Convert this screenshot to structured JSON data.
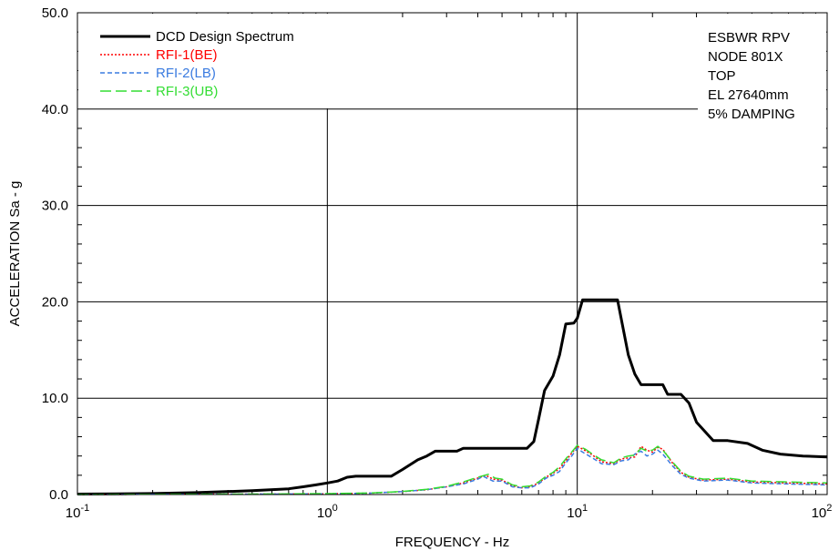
{
  "chart_data": {
    "type": "line",
    "title": "",
    "xlabel": "FREQUENCY - Hz",
    "ylabel": "ACCELERATION Sa - g",
    "xscale": "log",
    "xlim": [
      0.1,
      100
    ],
    "ylim": [
      0,
      50
    ],
    "grid": true,
    "legend_position": "top-left",
    "x_ticks": [
      {
        "base": "10",
        "exp": "-1",
        "value": 0.1
      },
      {
        "base": "10",
        "exp": "0",
        "value": 1
      },
      {
        "base": "10",
        "exp": "1",
        "value": 10
      },
      {
        "base": "10",
        "exp": "2",
        "value": 100
      }
    ],
    "y_ticks": [
      {
        "label": "0.0",
        "value": 0
      },
      {
        "label": "10.0",
        "value": 10
      },
      {
        "label": "20.0",
        "value": 20
      },
      {
        "label": "30.0",
        "value": 30
      },
      {
        "label": "40.0",
        "value": 40
      },
      {
        "label": "50.0",
        "value": 50
      }
    ],
    "annotations": [
      "ESBWR RPV",
      "NODE 801X",
      "TOP",
      "EL 27640mm",
      "5% DAMPING"
    ],
    "series": [
      {
        "name": "DCD Design Spectrum",
        "color": "#000000",
        "style": "solid",
        "points": [
          [
            0.1,
            0.05
          ],
          [
            0.2,
            0.1
          ],
          [
            0.3,
            0.2
          ],
          [
            0.5,
            0.4
          ],
          [
            0.7,
            0.6
          ],
          [
            0.8,
            0.8
          ],
          [
            0.9,
            1.0
          ],
          [
            1.0,
            1.2
          ],
          [
            1.1,
            1.4
          ],
          [
            1.2,
            1.8
          ],
          [
            1.3,
            1.9
          ],
          [
            1.8,
            1.9
          ],
          [
            2.0,
            2.6
          ],
          [
            2.3,
            3.6
          ],
          [
            2.5,
            4.0
          ],
          [
            2.7,
            4.5
          ],
          [
            3.3,
            4.5
          ],
          [
            3.5,
            4.8
          ],
          [
            6.3,
            4.8
          ],
          [
            6.7,
            5.5
          ],
          [
            7.0,
            7.8
          ],
          [
            7.4,
            10.8
          ],
          [
            8.0,
            12.3
          ],
          [
            8.5,
            14.5
          ],
          [
            9.0,
            17.7
          ],
          [
            9.7,
            17.8
          ],
          [
            10.0,
            18.3
          ],
          [
            10.5,
            20.2
          ],
          [
            14.5,
            20.2
          ],
          [
            16.0,
            14.5
          ],
          [
            17.0,
            12.5
          ],
          [
            18.0,
            11.4
          ],
          [
            22.0,
            11.4
          ],
          [
            23.0,
            10.4
          ],
          [
            26.0,
            10.4
          ],
          [
            28.0,
            9.5
          ],
          [
            30.0,
            7.5
          ],
          [
            35.0,
            5.6
          ],
          [
            40.0,
            5.6
          ],
          [
            48.0,
            5.3
          ],
          [
            55.0,
            4.6
          ],
          [
            65.0,
            4.2
          ],
          [
            80.0,
            4.0
          ],
          [
            100.0,
            3.9
          ]
        ]
      },
      {
        "name": "RFI-1(BE)",
        "color": "#ff0000",
        "style": "dotted",
        "points": [
          [
            0.1,
            0.01
          ],
          [
            0.5,
            0.04
          ],
          [
            1.0,
            0.08
          ],
          [
            1.5,
            0.15
          ],
          [
            2.0,
            0.3
          ],
          [
            2.5,
            0.5
          ],
          [
            3.0,
            0.8
          ],
          [
            3.5,
            1.2
          ],
          [
            4.0,
            1.7
          ],
          [
            4.3,
            2.0
          ],
          [
            4.6,
            1.6
          ],
          [
            5.0,
            1.5
          ],
          [
            5.5,
            0.9
          ],
          [
            6.0,
            0.7
          ],
          [
            6.5,
            0.8
          ],
          [
            7.0,
            1.2
          ],
          [
            7.5,
            1.8
          ],
          [
            8.0,
            2.2
          ],
          [
            8.5,
            2.7
          ],
          [
            9.0,
            3.5
          ],
          [
            9.5,
            4.3
          ],
          [
            10.0,
            5.0
          ],
          [
            10.7,
            4.6
          ],
          [
            11.5,
            4.1
          ],
          [
            12.5,
            3.4
          ],
          [
            14.0,
            3.2
          ],
          [
            15.0,
            3.7
          ],
          [
            16.0,
            3.8
          ],
          [
            17.0,
            3.9
          ],
          [
            18.0,
            5.0
          ],
          [
            19.0,
            4.6
          ],
          [
            20.0,
            4.4
          ],
          [
            21.0,
            4.9
          ],
          [
            22.0,
            4.7
          ],
          [
            24.0,
            3.3
          ],
          [
            26.0,
            2.3
          ],
          [
            28.0,
            1.8
          ],
          [
            32.0,
            1.5
          ],
          [
            40.0,
            1.6
          ],
          [
            50.0,
            1.3
          ],
          [
            70.0,
            1.2
          ],
          [
            100.0,
            1.1
          ]
        ]
      },
      {
        "name": "RFI-2(LB)",
        "color": "#3a7be0",
        "style": "dashed",
        "points": [
          [
            0.1,
            0.01
          ],
          [
            0.5,
            0.04
          ],
          [
            1.0,
            0.08
          ],
          [
            1.5,
            0.15
          ],
          [
            2.0,
            0.3
          ],
          [
            2.5,
            0.5
          ],
          [
            3.0,
            0.8
          ],
          [
            3.5,
            1.1
          ],
          [
            4.0,
            1.6
          ],
          [
            4.2,
            1.9
          ],
          [
            4.6,
            1.4
          ],
          [
            5.0,
            1.4
          ],
          [
            5.5,
            0.8
          ],
          [
            6.0,
            0.7
          ],
          [
            6.5,
            0.7
          ],
          [
            7.0,
            1.1
          ],
          [
            7.5,
            1.7
          ],
          [
            8.0,
            2.0
          ],
          [
            8.5,
            2.4
          ],
          [
            9.0,
            3.3
          ],
          [
            9.5,
            4.0
          ],
          [
            10.0,
            4.8
          ],
          [
            10.5,
            4.4
          ],
          [
            11.5,
            3.8
          ],
          [
            12.5,
            3.2
          ],
          [
            14.0,
            3.1
          ],
          [
            15.0,
            3.5
          ],
          [
            16.0,
            3.6
          ],
          [
            17.0,
            4.2
          ],
          [
            18.0,
            4.5
          ],
          [
            19.0,
            4.0
          ],
          [
            20.0,
            4.2
          ],
          [
            21.0,
            4.6
          ],
          [
            22.0,
            4.2
          ],
          [
            24.0,
            3.0
          ],
          [
            26.0,
            2.1
          ],
          [
            28.0,
            1.7
          ],
          [
            32.0,
            1.4
          ],
          [
            40.0,
            1.5
          ],
          [
            50.0,
            1.2
          ],
          [
            70.0,
            1.1
          ],
          [
            100.0,
            1.0
          ]
        ]
      },
      {
        "name": "RFI-3(UB)",
        "color": "#33dd33",
        "style": "longdash",
        "points": [
          [
            0.1,
            0.01
          ],
          [
            0.5,
            0.05
          ],
          [
            1.0,
            0.09
          ],
          [
            1.5,
            0.16
          ],
          [
            2.0,
            0.32
          ],
          [
            2.5,
            0.55
          ],
          [
            3.0,
            0.85
          ],
          [
            3.5,
            1.3
          ],
          [
            4.0,
            1.8
          ],
          [
            4.4,
            2.1
          ],
          [
            4.7,
            1.7
          ],
          [
            5.0,
            1.6
          ],
          [
            5.5,
            1.0
          ],
          [
            6.0,
            0.8
          ],
          [
            6.5,
            0.9
          ],
          [
            7.0,
            1.3
          ],
          [
            7.5,
            1.9
          ],
          [
            8.0,
            2.3
          ],
          [
            8.5,
            2.9
          ],
          [
            9.0,
            3.7
          ],
          [
            9.5,
            4.4
          ],
          [
            10.0,
            5.1
          ],
          [
            10.8,
            4.7
          ],
          [
            11.5,
            4.2
          ],
          [
            12.5,
            3.6
          ],
          [
            14.0,
            3.3
          ],
          [
            15.0,
            3.8
          ],
          [
            16.0,
            4.0
          ],
          [
            17.0,
            4.1
          ],
          [
            18.0,
            4.8
          ],
          [
            19.0,
            4.5
          ],
          [
            20.0,
            4.6
          ],
          [
            21.0,
            5.0
          ],
          [
            22.0,
            4.6
          ],
          [
            24.0,
            3.4
          ],
          [
            26.0,
            2.4
          ],
          [
            28.0,
            1.9
          ],
          [
            32.0,
            1.6
          ],
          [
            40.0,
            1.7
          ],
          [
            50.0,
            1.4
          ],
          [
            70.0,
            1.3
          ],
          [
            100.0,
            1.2
          ]
        ]
      }
    ]
  }
}
